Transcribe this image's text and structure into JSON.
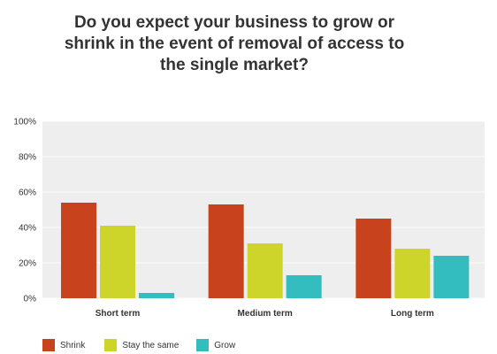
{
  "title_lines": [
    "Do you expect your business to grow or",
    "shrink in the event of removal of access to",
    "the single market?"
  ],
  "chart_data": {
    "type": "bar",
    "title": "Do you expect your business to grow or shrink in the event of removal of access to the single market?",
    "categories": [
      "Short term",
      "Medium term",
      "Long term"
    ],
    "series": [
      {
        "name": "Shrink",
        "color": "#c8421d",
        "values": [
          54,
          53,
          45
        ]
      },
      {
        "name": "Stay the same",
        "color": "#cdd52b",
        "values": [
          41,
          31,
          28
        ]
      },
      {
        "name": "Grow",
        "color": "#33bdbf",
        "values": [
          3,
          13,
          24
        ]
      }
    ],
    "ylim": [
      0,
      100
    ],
    "yticks": [
      "0%",
      "20%",
      "40%",
      "60%",
      "80%",
      "100%"
    ],
    "ytick_values": [
      0,
      20,
      40,
      60,
      80,
      100
    ],
    "grid": true,
    "legend_position": "bottom-left",
    "plot_background": "#eeeeee"
  }
}
